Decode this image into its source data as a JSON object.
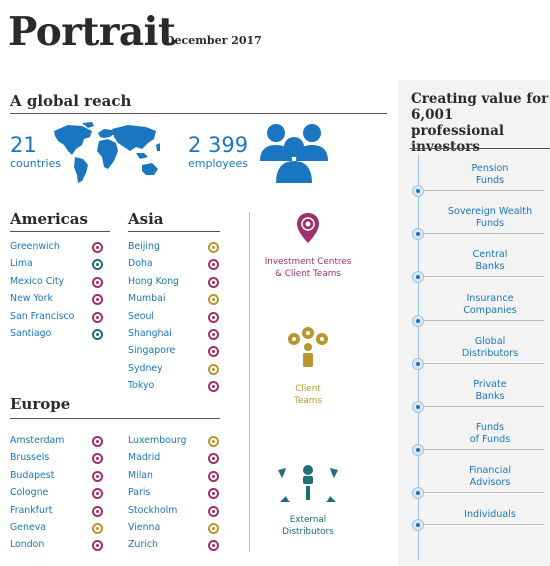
{
  "header": {
    "title": "Portrait",
    "date": "December 2017"
  },
  "reach": {
    "heading": "A global reach",
    "countries_value": "21",
    "countries_label": "countries",
    "employees_value": "2 399",
    "employees_label": "employees"
  },
  "americas": {
    "title": "Americas",
    "cities": [
      {
        "name": "Greenwich",
        "marker": "magenta"
      },
      {
        "name": "Lima",
        "marker": "teal"
      },
      {
        "name": "Mexico City",
        "marker": "magenta"
      },
      {
        "name": "New York",
        "marker": "magenta"
      },
      {
        "name": "San Francisco",
        "marker": "magenta"
      },
      {
        "name": "Santiago",
        "marker": "teal"
      }
    ]
  },
  "asia": {
    "title": "Asia",
    "cities": [
      {
        "name": "Beijing",
        "marker": "gold"
      },
      {
        "name": "Doha",
        "marker": "magenta"
      },
      {
        "name": "Hong Kong",
        "marker": "magenta"
      },
      {
        "name": "Mumbai",
        "marker": "gold"
      },
      {
        "name": "Seoul",
        "marker": "magenta"
      },
      {
        "name": "Shanghai",
        "marker": "magenta"
      },
      {
        "name": "Singapore",
        "marker": "magenta"
      },
      {
        "name": "Sydney",
        "marker": "gold"
      },
      {
        "name": "Tokyo",
        "marker": "magenta"
      }
    ]
  },
  "europe": {
    "title": "Europe",
    "col1": [
      {
        "name": "Amsterdam",
        "marker": "magenta"
      },
      {
        "name": "Brussels",
        "marker": "magenta"
      },
      {
        "name": "Budapest",
        "marker": "magenta"
      },
      {
        "name": "Cologne",
        "marker": "magenta"
      },
      {
        "name": "Frankfurt",
        "marker": "magenta"
      },
      {
        "name": "Geneva",
        "marker": "gold"
      },
      {
        "name": "London",
        "marker": "magenta"
      }
    ],
    "col2": [
      {
        "name": "Luxembourg",
        "marker": "gold"
      },
      {
        "name": "Madrid",
        "marker": "magenta"
      },
      {
        "name": "Milan",
        "marker": "magenta"
      },
      {
        "name": "Paris",
        "marker": "magenta"
      },
      {
        "name": "Stockholm",
        "marker": "magenta"
      },
      {
        "name": "Vienna",
        "marker": "gold"
      },
      {
        "name": "Zurich",
        "marker": "magenta"
      }
    ]
  },
  "legend": {
    "investment": {
      "line1": "Investment Centres",
      "line2": "& Client Teams",
      "color": "#a0316b",
      "icon": "location-pin-icon"
    },
    "client": {
      "line1": "Client",
      "line2": "Teams",
      "color": "#b8962f",
      "icon": "gears-person-icon"
    },
    "external": {
      "line1": "External",
      "line2": "Distributors",
      "color": "#1f6e7a",
      "icon": "distribution-arrows-icon"
    }
  },
  "investors": {
    "heading_line1": "Creating value for",
    "heading_line2": "6,001 professional",
    "heading_line3": "investors",
    "items": [
      {
        "line1": "Pension",
        "line2": "Funds"
      },
      {
        "line1": "Sovereign Wealth",
        "line2": "Funds"
      },
      {
        "line1": "Central",
        "line2": "Banks"
      },
      {
        "line1": "Insurance",
        "line2": "Companies"
      },
      {
        "line1": "Global",
        "line2": "Distributors"
      },
      {
        "line1": "Private",
        "line2": "Banks"
      },
      {
        "line1": "Funds",
        "line2": "of Funds"
      },
      {
        "line1": "Financial",
        "line2": "Advisors"
      },
      {
        "line1": "Individuals",
        "line2": ""
      }
    ]
  },
  "colors": {
    "brand_blue": "#1a76c0",
    "magenta": "#a0316b",
    "teal": "#1f6e7a",
    "gold": "#b8962f"
  }
}
